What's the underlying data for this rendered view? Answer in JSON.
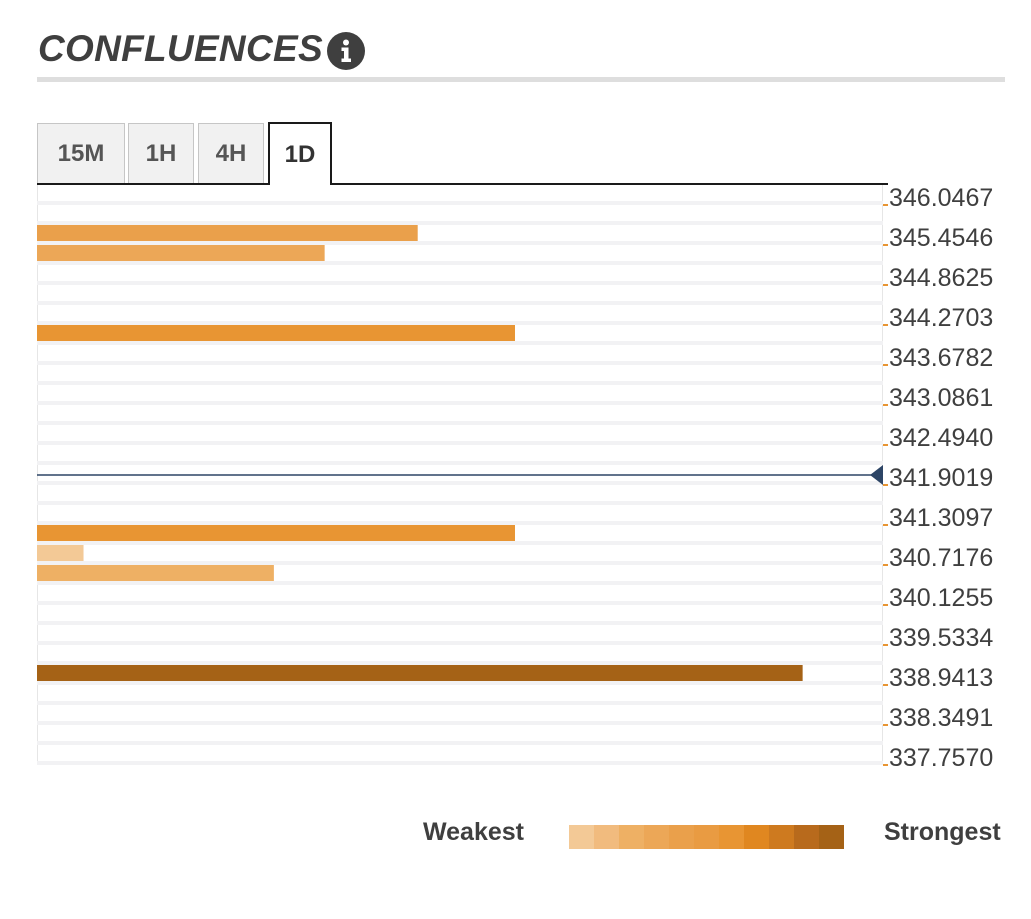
{
  "header": {
    "title": "CONFLUENCES",
    "info_icon": "info-icon"
  },
  "tabs": [
    {
      "label": "15M",
      "active": false
    },
    {
      "label": "1H",
      "active": false
    },
    {
      "label": "4H",
      "active": false
    },
    {
      "label": "1D",
      "active": true
    }
  ],
  "chart_data": {
    "type": "bar",
    "orientation": "horizontal",
    "price_labels": [
      "346.0467",
      "345.4546",
      "344.8625",
      "344.2703",
      "343.6782",
      "343.0861",
      "342.4940",
      "341.9019",
      "341.3097",
      "340.7176",
      "340.1255",
      "339.5334",
      "338.9413",
      "338.3491",
      "337.7570"
    ],
    "current_price": "341.9019",
    "max_strength": 10,
    "bars": [
      {
        "slot": 0,
        "strength": 0,
        "level": 0
      },
      {
        "slot": 1,
        "strength": 4.5,
        "level": 6
      },
      {
        "slot": 2,
        "strength": 3.4,
        "level": 5
      },
      {
        "slot": 3,
        "strength": 0,
        "level": 0
      },
      {
        "slot": 4,
        "strength": 0,
        "level": 0
      },
      {
        "slot": 5,
        "strength": 0,
        "level": 0
      },
      {
        "slot": 6,
        "strength": 5.65,
        "level": 8
      },
      {
        "slot": 7,
        "strength": 0,
        "level": 0
      },
      {
        "slot": 8,
        "strength": 0,
        "level": 0
      },
      {
        "slot": 9,
        "strength": 0,
        "level": 0
      },
      {
        "slot": 10,
        "strength": 0,
        "level": 0
      },
      {
        "slot": 11,
        "strength": 0,
        "level": 0
      },
      {
        "slot": 12,
        "strength": 0,
        "level": 0
      },
      {
        "slot": 13,
        "strength": 0,
        "level": 0
      },
      {
        "slot": 14,
        "strength": 0,
        "level": 0
      },
      {
        "slot": 15,
        "strength": 0,
        "level": 0
      },
      {
        "slot": 16,
        "strength": 5.65,
        "level": 8
      },
      {
        "slot": 17,
        "strength": 0.55,
        "level": 2
      },
      {
        "slot": 18,
        "strength": 2.8,
        "level": 4
      },
      {
        "slot": 19,
        "strength": 0,
        "level": 0
      },
      {
        "slot": 20,
        "strength": 0,
        "level": 0
      },
      {
        "slot": 21,
        "strength": 0,
        "level": 0
      },
      {
        "slot": 22,
        "strength": 0,
        "level": 0
      },
      {
        "slot": 23,
        "strength": 9.05,
        "level": 12
      },
      {
        "slot": 24,
        "strength": 0,
        "level": 0
      },
      {
        "slot": 25,
        "strength": 0,
        "level": 0
      },
      {
        "slot": 26,
        "strength": 0,
        "level": 0
      },
      {
        "slot": 27,
        "strength": 0,
        "level": 0
      },
      {
        "slot": 28,
        "strength": 0,
        "level": 0
      }
    ],
    "strength_colors": [
      "#f8dfc4",
      "#f6d6b4",
      "#f3c996",
      "#f1bb7e",
      "#eeb064",
      "#eca757",
      "#eaa04b",
      "#e99b42",
      "#e89533",
      "#e08720",
      "#ce7a1f",
      "#b86a1c",
      "#a56216"
    ]
  },
  "legend": {
    "weakest_label": "Weakest",
    "strongest_label": "Strongest"
  }
}
